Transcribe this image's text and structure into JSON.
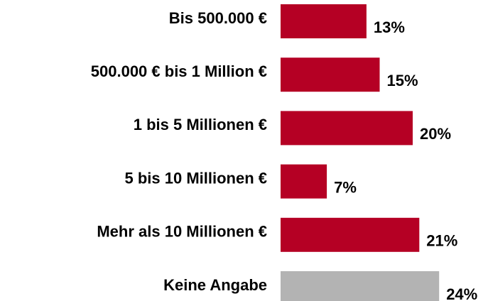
{
  "chart_data": {
    "type": "hbar",
    "categories": [
      "Bis 500.000 €",
      "500.000 € bis 1 Million €",
      "1 bis 5 Millionen €",
      "5 bis 10 Millionen €",
      "Mehr als 10 Millionen €",
      "Keine Angabe"
    ],
    "values": [
      13,
      15,
      20,
      7,
      21,
      24
    ],
    "value_labels": [
      "13%",
      "15%",
      "20%",
      "7%",
      "21%",
      "24%"
    ],
    "colors": [
      "#b50024",
      "#b50024",
      "#b50024",
      "#b50024",
      "#b50024",
      "#b3b3b3"
    ]
  }
}
